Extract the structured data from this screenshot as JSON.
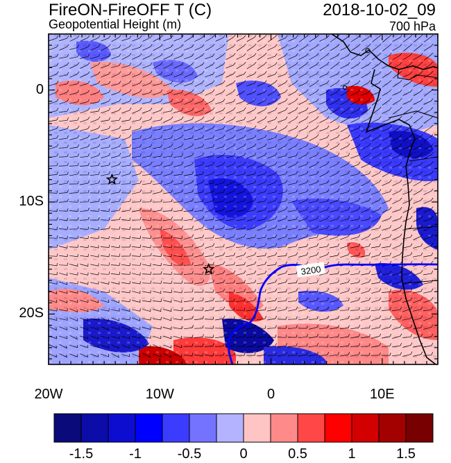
{
  "title": {
    "left_main": "FireON-FireOFF T (C)",
    "left_sub": "Geopotential Height (m)",
    "right_main": "2018-10-02_09",
    "right_sub": "700 hPa"
  },
  "map": {
    "lon_range": [
      -20,
      15
    ],
    "lat_range": [
      -24.5,
      5
    ],
    "x_ticks": [
      "20W",
      "10W",
      "0",
      "10E"
    ],
    "y_ticks": [
      "0",
      "10S",
      "20S"
    ],
    "contour_label": "3200",
    "markers": [
      {
        "name": "star",
        "lon": -14.3,
        "lat": -8.0
      },
      {
        "name": "star",
        "lon": -5.6,
        "lat": -16.0
      }
    ]
  },
  "colorbar": {
    "labels": [
      "-1.5",
      "-1",
      "-0.5",
      "0",
      "0.5",
      "1",
      "1.5"
    ],
    "colors": [
      "#0a0a7a",
      "#0c0ca8",
      "#0d0dcf",
      "#0000ff",
      "#3c3cff",
      "#7373ff",
      "#b3b3ff",
      "#ffc4c4",
      "#ff8a8a",
      "#ff4747",
      "#ff0000",
      "#d20000",
      "#a30000",
      "#780000"
    ]
  }
}
